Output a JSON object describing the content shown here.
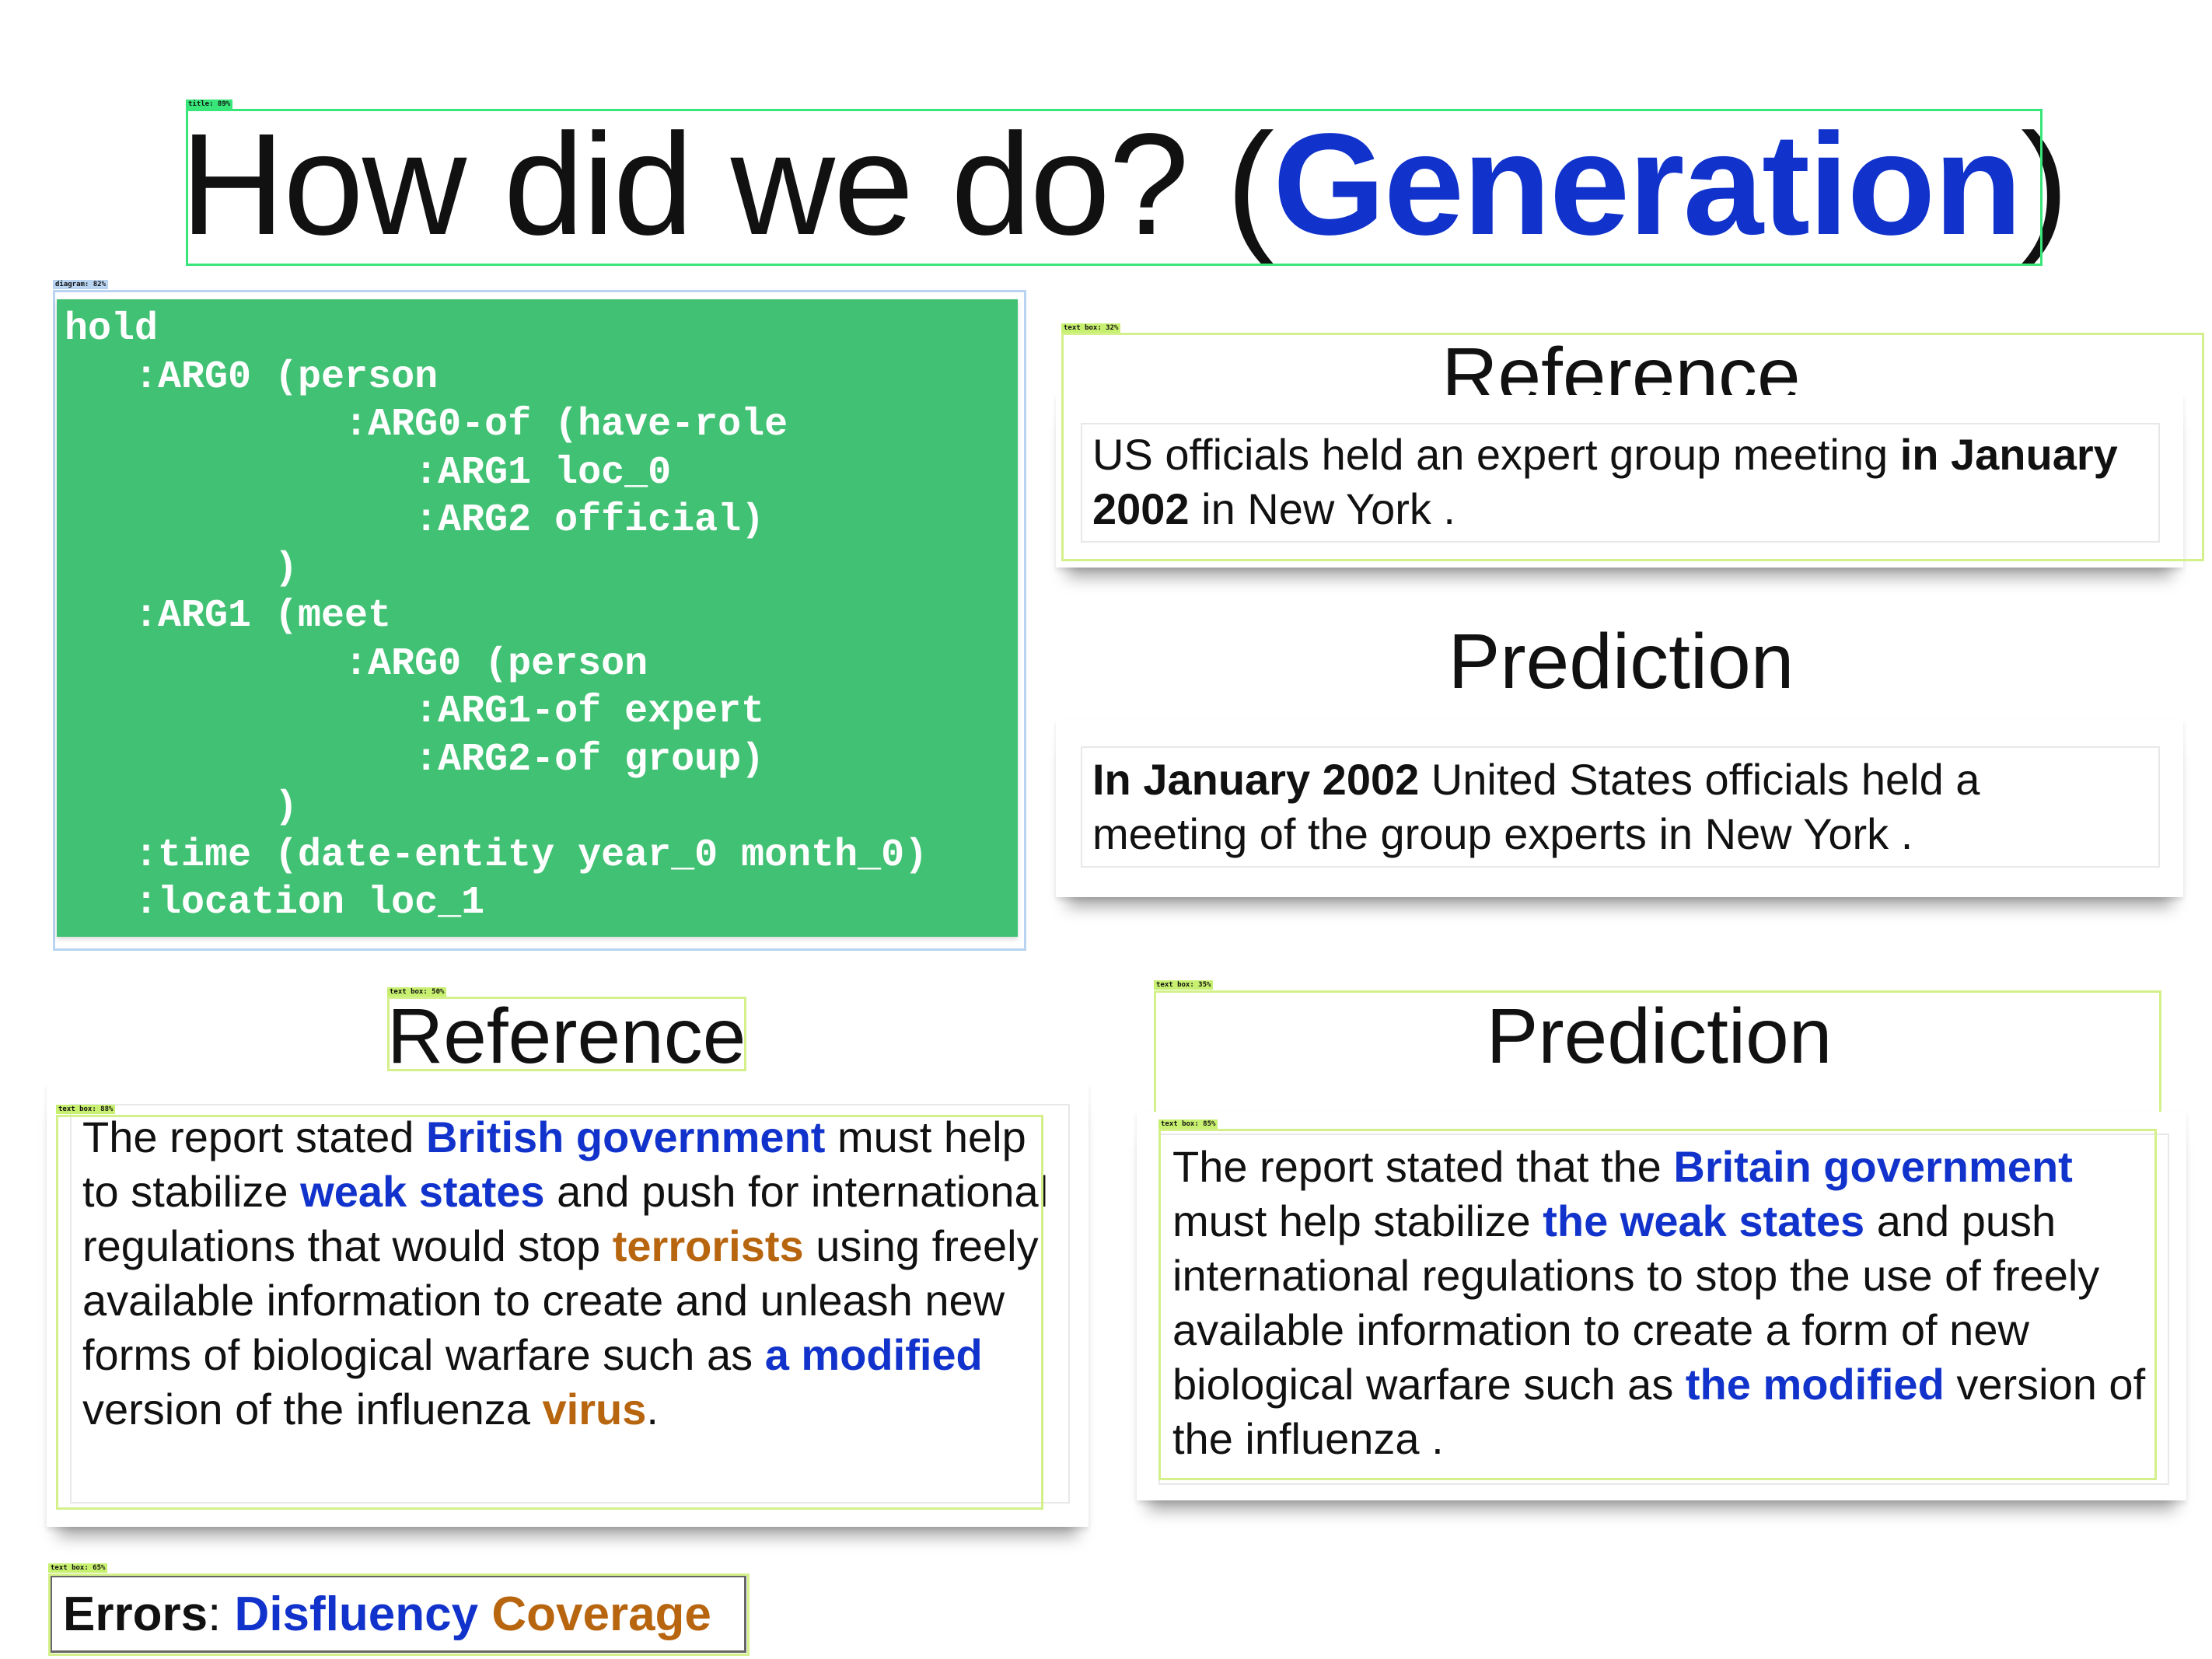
{
  "title": {
    "prefix": "How did we do? (",
    "highlight": "Generation",
    "suffix": ")"
  },
  "amr_graph": [
    "hold",
    "   :ARG0 (person",
    "            :ARG0-of (have-role",
    "               :ARG1 loc_0",
    "               :ARG2 official)",
    "         )",
    "   :ARG1 (meet",
    "            :ARG0 (person",
    "               :ARG1-of expert",
    "               :ARG2-of group)",
    "         )",
    "   :time (date-entity year_0 month_0)",
    "   :location loc_1"
  ],
  "example1": {
    "reference_heading": "Reference",
    "prediction_heading": "Prediction",
    "reference": [
      {
        "text": "US officials held an expert group meeting ",
        "style": "normal"
      },
      {
        "text": "in January 2002",
        "style": "bold"
      },
      {
        "text": " in New York .",
        "style": "normal"
      }
    ],
    "prediction": [
      {
        "text": "In January 2002",
        "style": "bold"
      },
      {
        "text": " United States officials held a meeting of the group experts in New York .",
        "style": "normal"
      }
    ]
  },
  "example2": {
    "reference_heading": "Reference",
    "prediction_heading": "Prediction",
    "reference": [
      {
        "text": "The report stated ",
        "style": "normal"
      },
      {
        "text": "British government",
        "style": "blue"
      },
      {
        "text": " must help to stabilize ",
        "style": "normal"
      },
      {
        "text": "weak states",
        "style": "blue"
      },
      {
        "text": " and push for international regulations that would stop ",
        "style": "normal"
      },
      {
        "text": "terrorists",
        "style": "orange"
      },
      {
        "text": " using freely available information to create and unleash new forms of biological warfare such as ",
        "style": "normal"
      },
      {
        "text": "a modified",
        "style": "blue"
      },
      {
        "text": " version of the influenza ",
        "style": "normal"
      },
      {
        "text": "virus",
        "style": "orange"
      },
      {
        "text": ".",
        "style": "normal"
      }
    ],
    "prediction": [
      {
        "text": "The report stated that the ",
        "style": "normal"
      },
      {
        "text": "Britain government",
        "style": "blue"
      },
      {
        "text": " must help stabilize ",
        "style": "normal"
      },
      {
        "text": "the weak states",
        "style": "blue"
      },
      {
        "text": " and push international regulations to stop the use of freely available information to create a form of new biological warfare such as ",
        "style": "normal"
      },
      {
        "text": "the modified",
        "style": "blue"
      },
      {
        "text": " version of the influenza .",
        "style": "normal"
      }
    ]
  },
  "errors": {
    "label": "Errors",
    "colon": ": ",
    "disfluency": "Disfluency",
    "coverage": "Coverage"
  },
  "detections": {
    "title": "title: 89%",
    "diagram": "diagram: 82%",
    "text_box_1": "text box: 32%",
    "text_box_2": "text box: 50%",
    "text_box_3": "text box: 88%",
    "text_box_4": "text box: 35%",
    "text_box_5": "text box: 85%",
    "text_box_6": "text box: 65%"
  },
  "colors": {
    "accent_blue": "#1133cc",
    "accent_orange": "#b8650f",
    "amr_panel_green": "#41c173",
    "detection_box": "#d4f08a"
  }
}
